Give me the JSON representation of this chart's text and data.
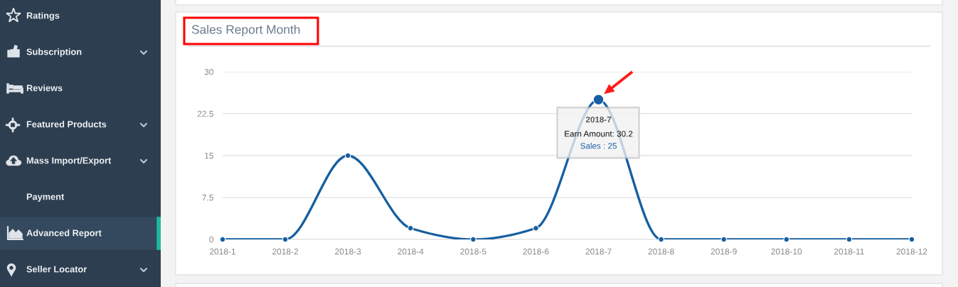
{
  "chart_data": [
    {
      "type": "other",
      "annotations": [
        "Ratings",
        "Subscription",
        "Reviews",
        "Featured Products",
        "Mass Import/Export",
        "Payment",
        "Advanced Report",
        "Seller Locator"
      ]
    },
    {
      "type": "line",
      "title": "Sales Report Month",
      "categories": [
        "2018-1",
        "2018-2",
        "2018-3",
        "2018-4",
        "2018-5",
        "2018-6",
        "2018-7",
        "2018-8",
        "2018-9",
        "2018-10",
        "2018-11",
        "2018-12"
      ],
      "series": [
        {
          "color": "#155fa0",
          "values": [
            0,
            0,
            15,
            2,
            0,
            2,
            25,
            0,
            0,
            0,
            0,
            0
          ]
        }
      ],
      "ylim": [
        0,
        30
      ],
      "yticks": [
        0,
        7.5,
        15,
        22.5,
        30
      ],
      "grid": "y",
      "marker": "circle",
      "annotations": [
        {
          "text": "2018-7",
          "x": "2018-7",
          "y": 25
        },
        "Earn Amount: 30.2",
        "Sales : 25"
      ]
    }
  ]
}
